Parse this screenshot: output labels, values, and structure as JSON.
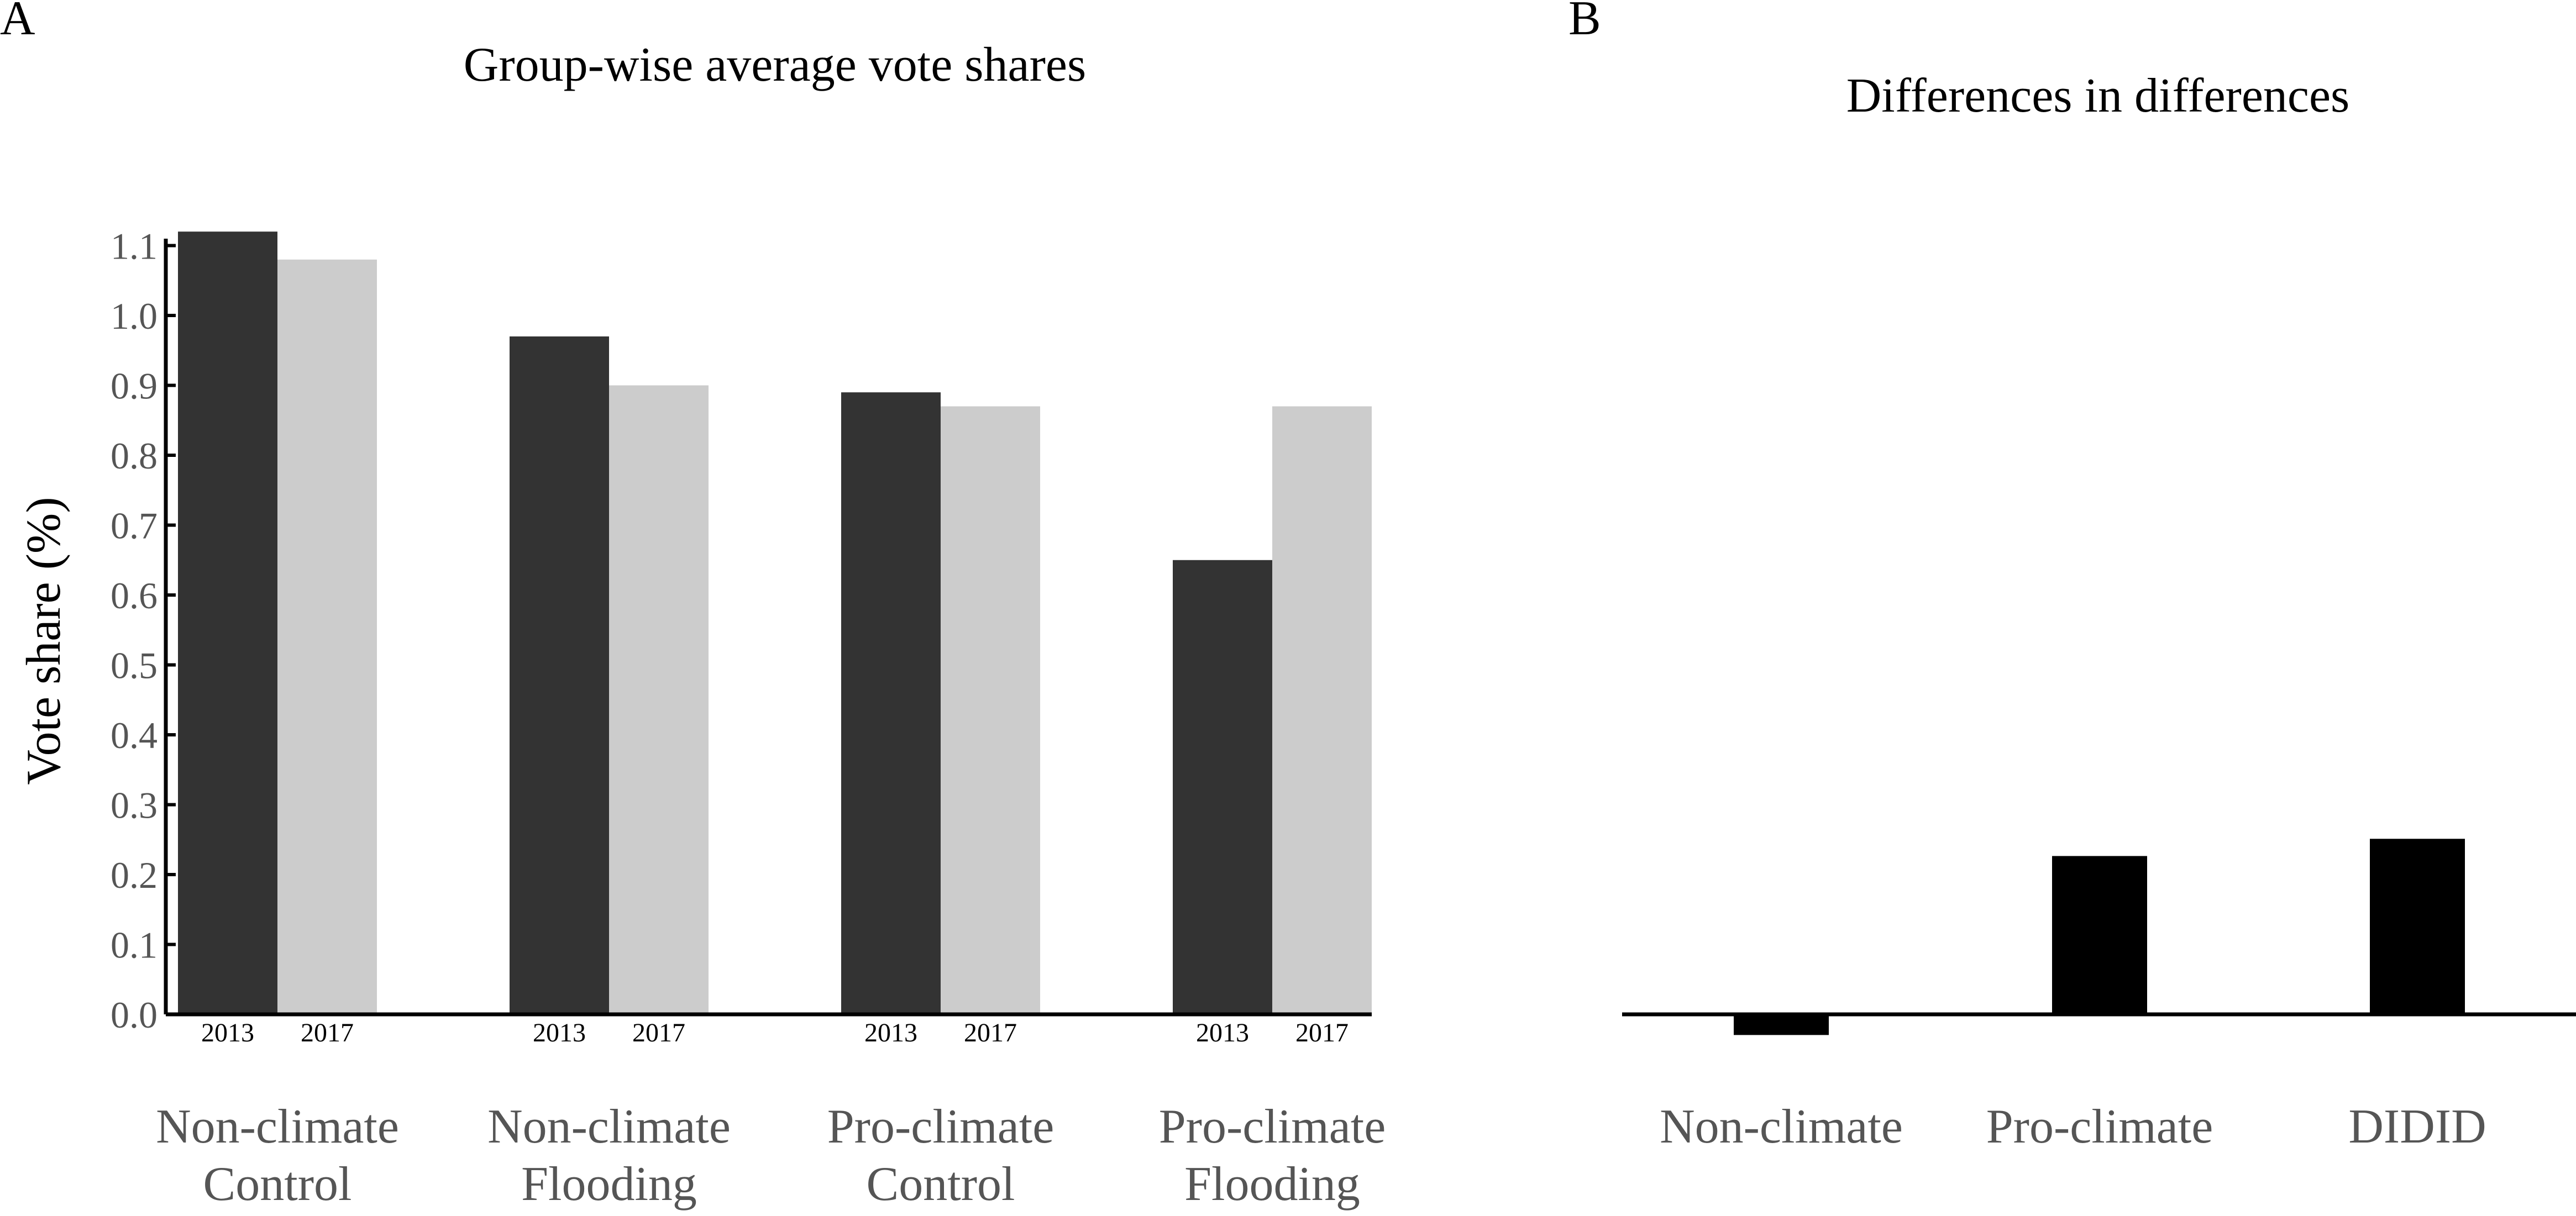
{
  "panels": {
    "a": {
      "label": "A",
      "title": "Group-wise average vote shares"
    },
    "b": {
      "label": "B",
      "title": "Differences in differences"
    }
  },
  "colors": {
    "y2013": "#333333",
    "y2017": "#cccccc",
    "diff": "#000000",
    "axis": "#000000",
    "tick_text": "#555555"
  },
  "chart_data": [
    {
      "type": "bar",
      "title": "Group-wise average vote shares",
      "ylabel": "Vote share (%)",
      "xlabel": "",
      "ylim": [
        0,
        1.12
      ],
      "yticks": [
        "0.0",
        "0.1",
        "0.2",
        "0.3",
        "0.4",
        "0.5",
        "0.6",
        "0.7",
        "0.8",
        "0.9",
        "1.0",
        "1.1"
      ],
      "categories": [
        [
          "Non-climate",
          "Control"
        ],
        [
          "Non-climate",
          "Flooding"
        ],
        [
          "Pro-climate",
          "Control"
        ],
        [
          "Pro-climate",
          "Flooding"
        ]
      ],
      "bar_labels": [
        "2013",
        "2017"
      ],
      "series": [
        {
          "values": [
            1.12,
            0.97,
            0.89,
            0.65
          ]
        },
        {
          "values": [
            1.08,
            0.9,
            0.87,
            0.87
          ]
        }
      ],
      "grid": false,
      "legend": "none"
    },
    {
      "type": "bar",
      "title": "Differences in differences",
      "xlabel": "",
      "ylabel": "",
      "categories": [
        "Non-climate",
        "Pro-climate",
        "DIDID"
      ],
      "values": [
        -0.03,
        0.23,
        0.255
      ],
      "grid": false,
      "legend": "none"
    }
  ]
}
